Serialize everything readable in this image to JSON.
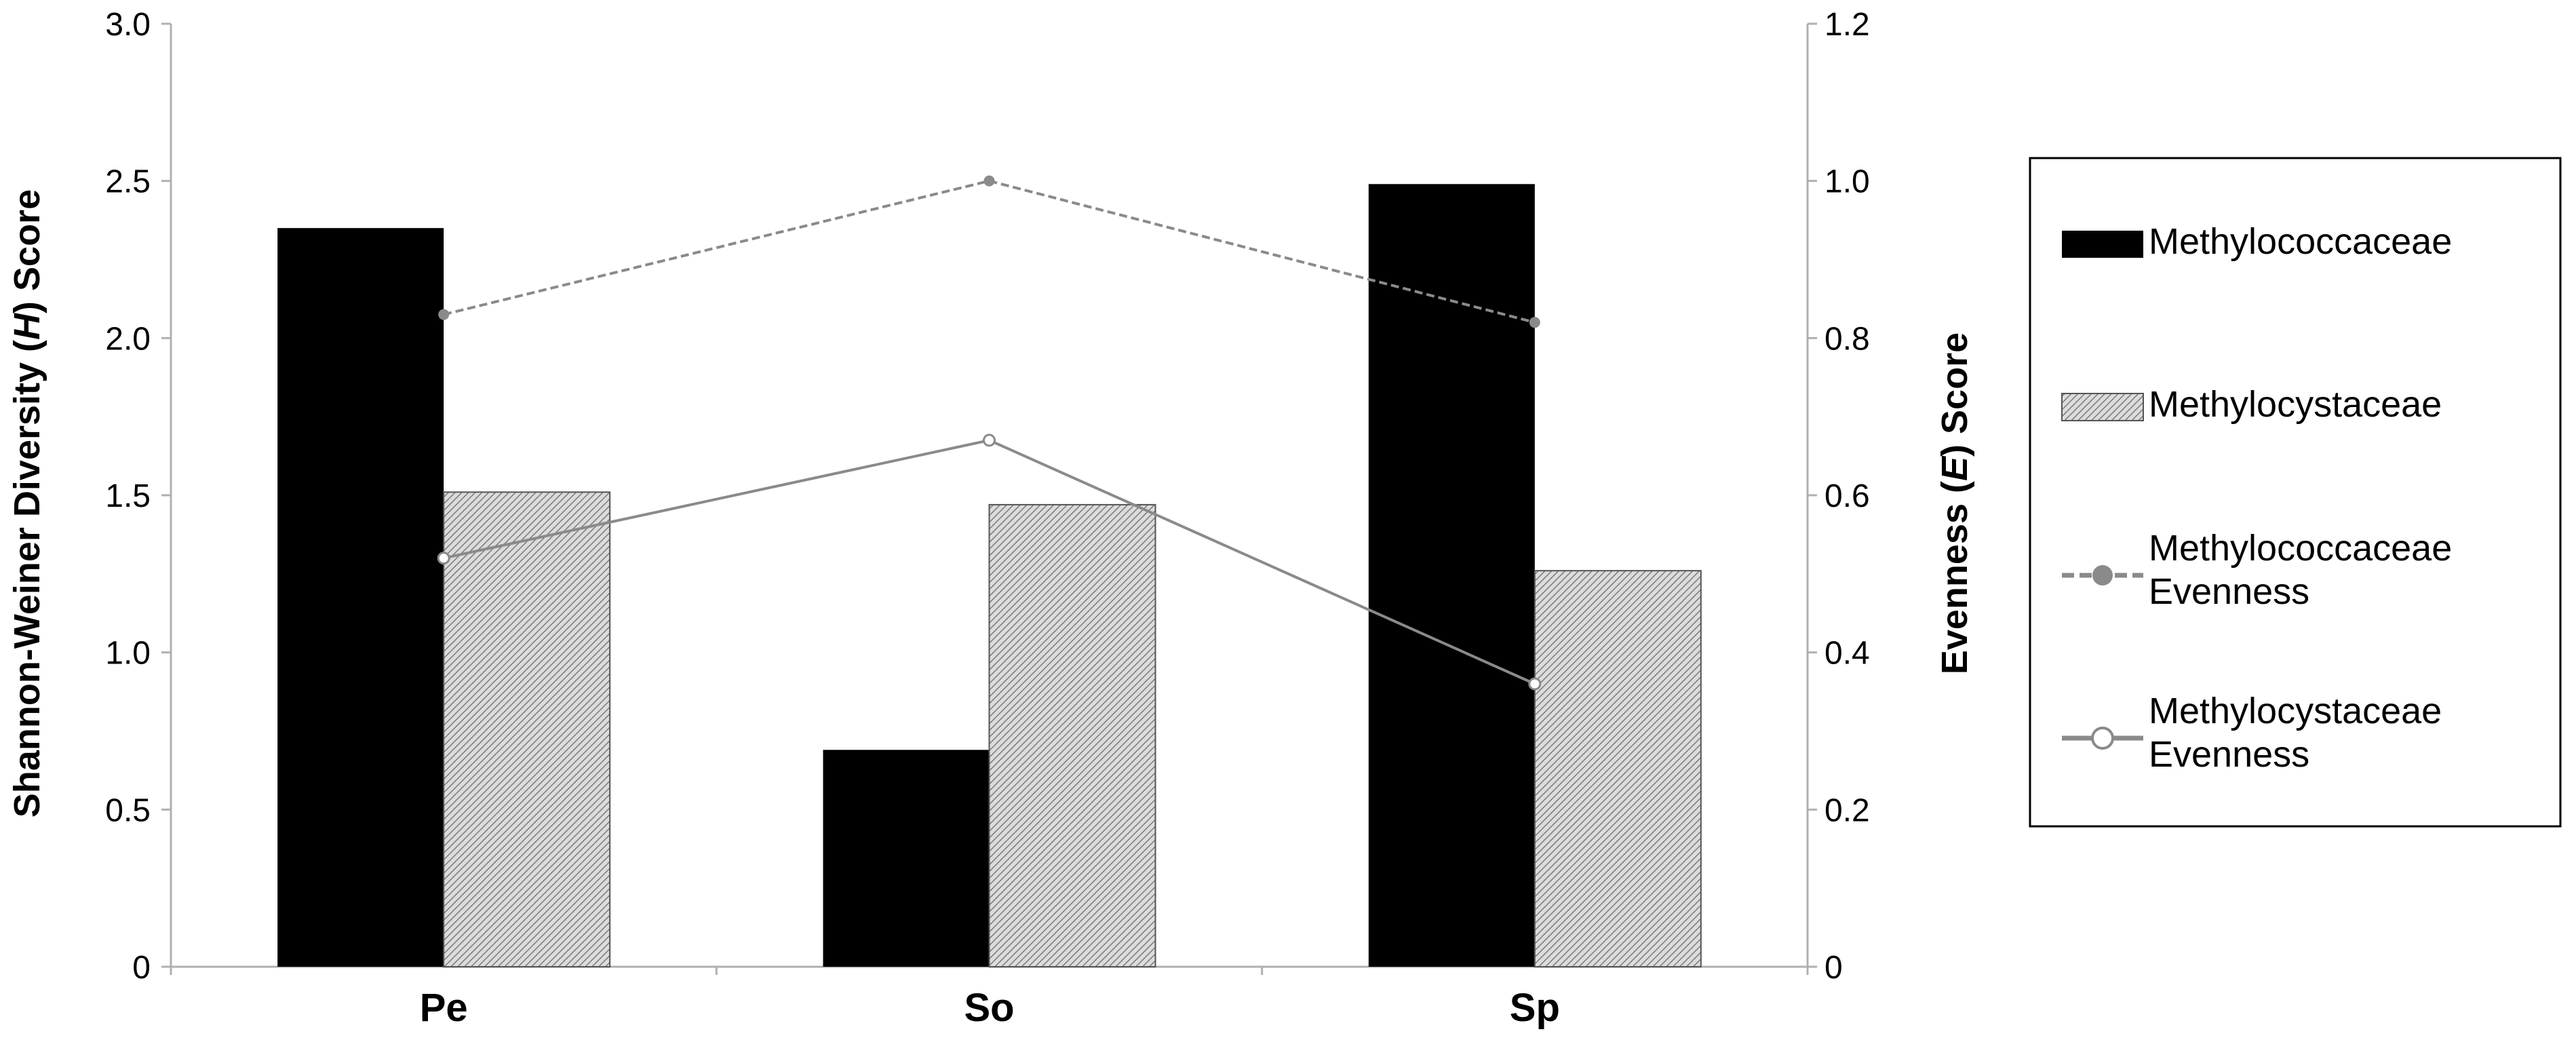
{
  "chart_data": {
    "type": "bar",
    "categories": [
      "Pe",
      "So",
      "Sp"
    ],
    "ylabel_left": [
      "Shannon-Weiner Diversity (",
      "H",
      ") Score"
    ],
    "ylabel_right": [
      "Evenness (",
      "E",
      ") Score"
    ],
    "ylim_left": [
      0,
      3.0
    ],
    "ylim_right": [
      0,
      1.2
    ],
    "left_ticks": [
      "0",
      "0.5",
      "1.0",
      "1.5",
      "2.0",
      "2.5",
      "3.0"
    ],
    "right_ticks": [
      "0",
      "0.2",
      "0.4",
      "0.6",
      "0.8",
      "1.0",
      "1.2"
    ],
    "grid": false,
    "legend_position": "right",
    "bar_series": [
      {
        "name": "Methylococcaceae",
        "axis": "left",
        "values": [
          2.35,
          0.69,
          2.49
        ],
        "fill": "black"
      },
      {
        "name": "Methylocystaceae",
        "axis": "left",
        "values": [
          1.51,
          1.47,
          1.26
        ],
        "fill": "hatched-gray"
      }
    ],
    "line_series": [
      {
        "name": [
          "Methylococcaceae",
          "Evenness"
        ],
        "axis": "right",
        "values": [
          0.83,
          1.0,
          0.82
        ],
        "style": "dashed",
        "marker": "filled-circle",
        "color": "#8a8a8a"
      },
      {
        "name": [
          "Methylocystaceae",
          "Evenness"
        ],
        "axis": "right",
        "values": [
          0.52,
          0.67,
          0.36
        ],
        "style": "solid",
        "marker": "open-circle",
        "color": "#8a8a8a"
      }
    ]
  }
}
